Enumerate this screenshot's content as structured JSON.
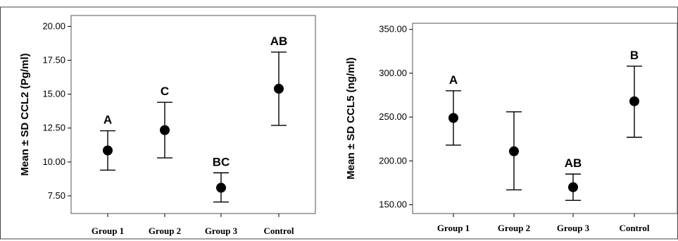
{
  "chart_data": [
    {
      "type": "scatter",
      "subtype": "error-bar",
      "ylabel": "Mean ± SD CCL2 (Pg/ml)",
      "xlabel": "",
      "categories": [
        "Group 1",
        "Group 2",
        "Group 3",
        "Control"
      ],
      "means": [
        10.85,
        12.35,
        8.1,
        15.4
      ],
      "lower": [
        9.4,
        10.3,
        7.05,
        12.7
      ],
      "upper": [
        12.3,
        14.4,
        9.2,
        18.1
      ],
      "significance_labels": [
        "A",
        "C",
        "BC",
        "AB"
      ],
      "yticks": [
        "7.50",
        "10.00",
        "12.50",
        "15.00",
        "17.50",
        "20.00"
      ],
      "ylim": [
        6.2,
        20.8
      ],
      "grid": false
    },
    {
      "type": "scatter",
      "subtype": "error-bar",
      "ylabel": "Mean ± SD CCL5 (ng/ml)",
      "xlabel": "",
      "categories": [
        "Group 1",
        "Group 2",
        "Group 3",
        "Control"
      ],
      "means": [
        249,
        211,
        170,
        268
      ],
      "lower": [
        218,
        167,
        155,
        227
      ],
      "upper": [
        280,
        256,
        185,
        308
      ],
      "significance_labels": [
        "A",
        "",
        "AB",
        "B"
      ],
      "yticks": [
        "150.00",
        "200.00",
        "250.00",
        "300.00",
        "350.00"
      ],
      "ylim": [
        140,
        357
      ],
      "grid": false
    }
  ]
}
